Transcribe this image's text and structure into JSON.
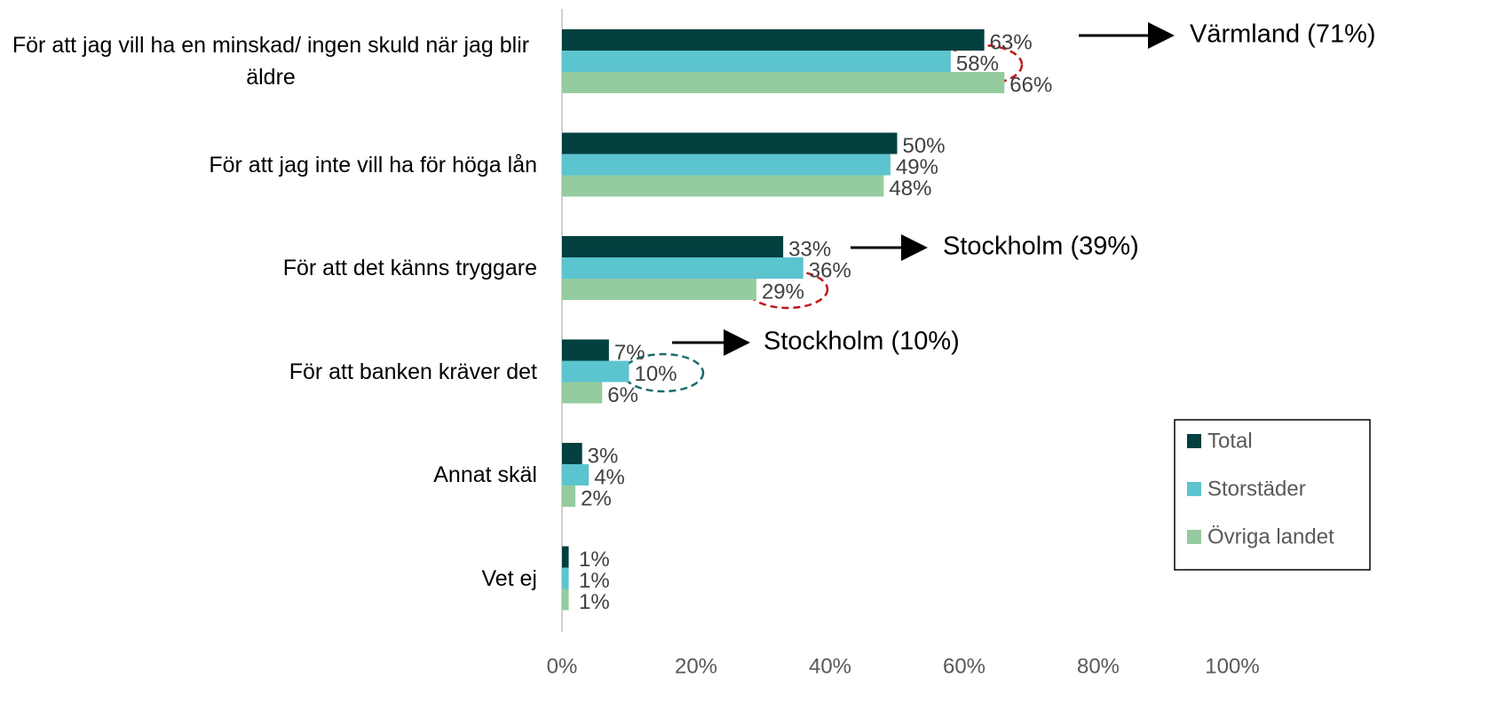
{
  "chart_data": {
    "type": "hbar",
    "categories": [
      "För att jag vill ha en minskad/ ingen skuld när jag blir äldre",
      "För att jag inte vill ha för höga lån",
      "För att det känns tryggare",
      "För att banken kräver det",
      "Annat skäl",
      "Vet ej"
    ],
    "series": [
      {
        "name": "Total",
        "color": "#023f3f",
        "values": [
          63,
          50,
          33,
          7,
          3,
          1
        ],
        "value_labels": [
          "63%",
          "50%",
          "33%",
          "7%",
          "3%",
          "1%"
        ]
      },
      {
        "name": "Storstäder",
        "color": "#5cc4cf",
        "values": [
          58,
          49,
          36,
          10,
          4,
          1
        ],
        "value_labels": [
          "58%",
          "49%",
          "36%",
          "10%",
          "4%",
          "1%"
        ]
      },
      {
        "name": "Övriga landet",
        "color": "#95cc9f",
        "values": [
          66,
          48,
          29,
          6,
          2,
          1
        ],
        "value_labels": [
          "66%",
          "48%",
          "29%",
          "6%",
          "2%",
          "1%"
        ]
      }
    ],
    "xlim": [
      0,
      100
    ],
    "xticks": [
      {
        "value": 0,
        "label": "0%"
      },
      {
        "value": 20,
        "label": "20%"
      },
      {
        "value": 40,
        "label": "40%"
      },
      {
        "value": 60,
        "label": "60%"
      },
      {
        "value": 80,
        "label": "80%"
      },
      {
        "value": 100,
        "label": "100%"
      }
    ],
    "legend": "right",
    "annotations": [
      "Värmland (71%)",
      "Stockholm (39%)",
      "Stockholm (10%)"
    ]
  }
}
